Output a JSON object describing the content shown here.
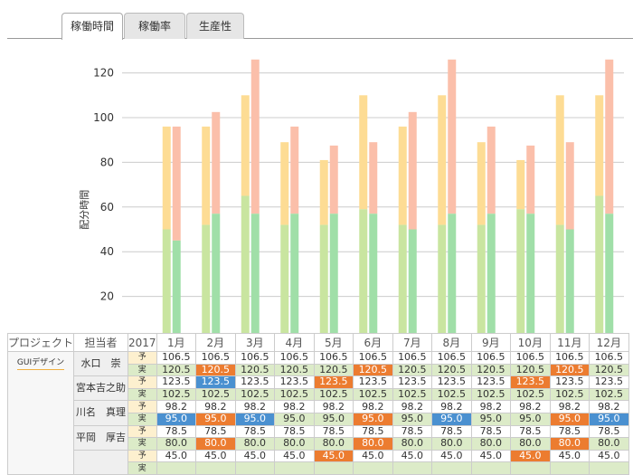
{
  "tabs": [
    {
      "label": "稼働時間",
      "active": true
    },
    {
      "label": "稼働率",
      "active": false
    },
    {
      "label": "生産性",
      "active": false
    }
  ],
  "colors": {
    "plan_base": "#c9e5a0",
    "plan_extra": "#fddc94",
    "actual_base": "#a0dfa8",
    "actual_extra": "#fbbfaa",
    "highlight_over": "#ec7c30",
    "highlight_under": "#4a90d0"
  },
  "chart_data": {
    "type": "bar",
    "stacked": true,
    "ylabel": "配分時間",
    "yticks": [
      20,
      40,
      60,
      80,
      100,
      120
    ],
    "ylim": [
      0,
      128
    ],
    "grid": true,
    "categories": [
      "1月",
      "2月",
      "3月",
      "4月",
      "5月",
      "6月",
      "7月",
      "8月",
      "9月",
      "10月",
      "11月",
      "12月"
    ],
    "series": [
      {
        "group": "plan",
        "base": [
          50,
          52,
          65,
          52,
          52,
          59,
          52,
          52,
          52,
          59,
          52,
          65
        ],
        "total": [
          96,
          96,
          110,
          89,
          81,
          110,
          96,
          110,
          89,
          81,
          110,
          110
        ]
      },
      {
        "group": "actual",
        "base": [
          45,
          57,
          57,
          57,
          57,
          57,
          50,
          57,
          57,
          57,
          50,
          57
        ],
        "total": [
          96,
          102.5,
          126,
          96,
          87.5,
          89,
          102.5,
          126,
          96,
          87.5,
          89,
          126
        ]
      }
    ]
  },
  "table": {
    "headers": {
      "project": "プロジェクト",
      "person": "担当者",
      "year": "2017",
      "months": [
        "1月",
        "2月",
        "3月",
        "4月",
        "5月",
        "6月",
        "7月",
        "8月",
        "9月",
        "10月",
        "11月",
        "12月"
      ]
    },
    "project": "GUIデザイン",
    "plan_label": "予",
    "actual_label": "実",
    "people": [
      {
        "name": "水口　崇",
        "plan": "106.5",
        "actual": "120.5",
        "plan_hi": {},
        "actual_hi": {
          "1": "orange",
          "5": "orange",
          "10": "orange"
        }
      },
      {
        "name": "宮本吉之助",
        "plan": "123.5",
        "actual": "102.5",
        "plan_hi": {
          "1": "blue",
          "4": "orange",
          "9": "orange"
        },
        "actual_hi": {}
      },
      {
        "name": "川名　真理",
        "plan": "98.2",
        "actual": "95.0",
        "plan_hi": {},
        "actual_hi": {
          "0": "blue",
          "1": "orange",
          "2": "blue",
          "5": "orange",
          "7": "blue",
          "10": "orange",
          "11": "blue"
        }
      },
      {
        "name": "平岡　厚吉",
        "plan": "78.5",
        "actual": "80.0",
        "plan_hi": {},
        "actual_hi": {
          "1": "orange",
          "5": "orange",
          "10": "orange"
        }
      },
      {
        "name": "",
        "plan": "45.0",
        "actual": "",
        "plan_hi": {
          "4": "orange",
          "9": "orange"
        },
        "actual_hi": {}
      }
    ]
  }
}
